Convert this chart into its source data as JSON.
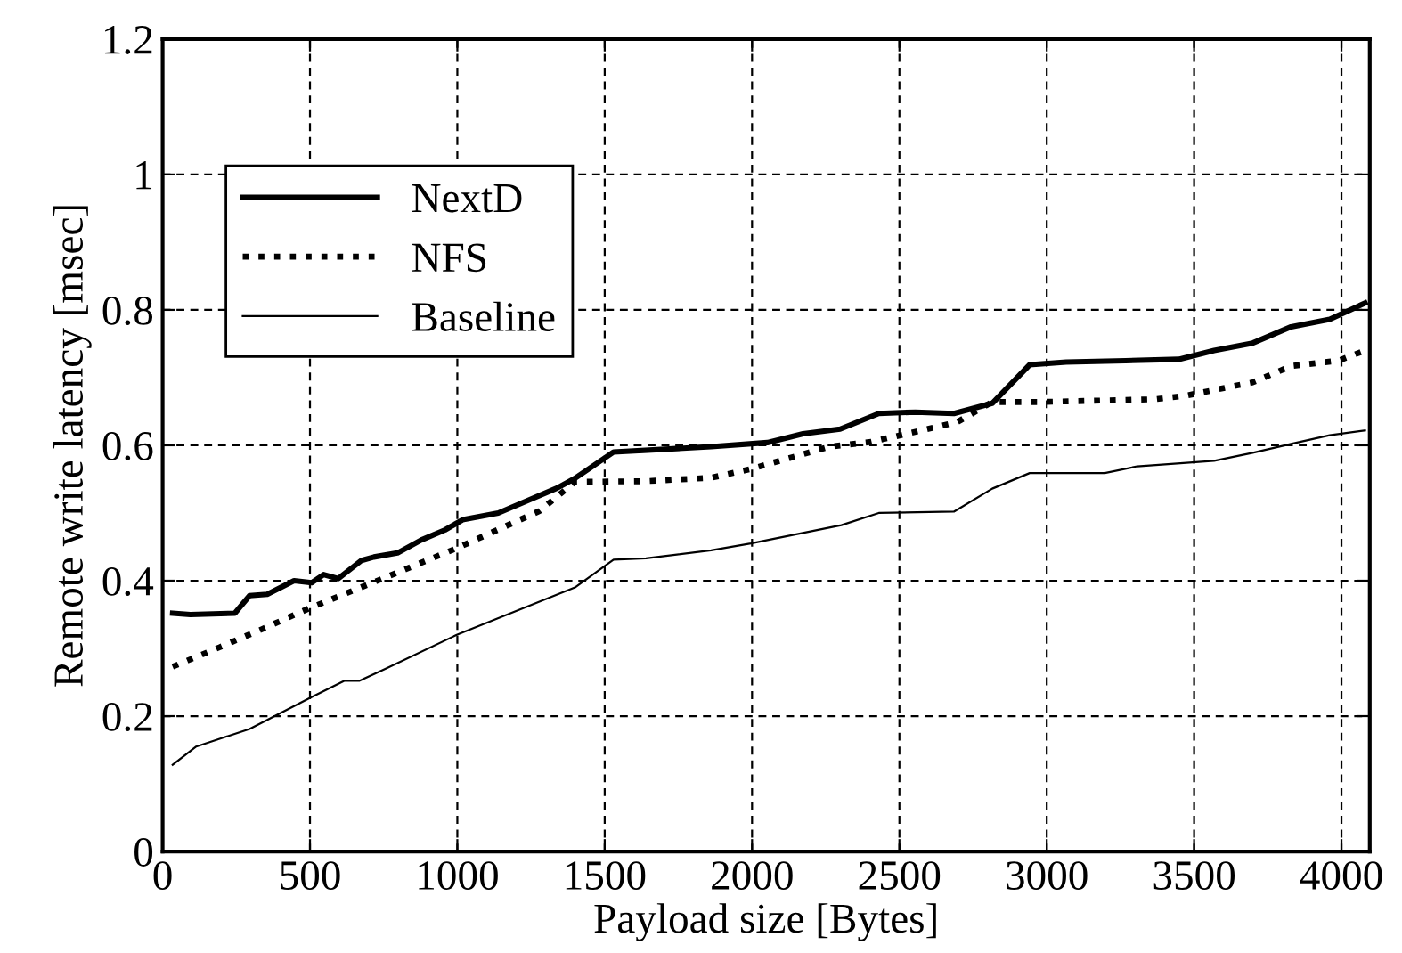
{
  "chart_data": {
    "type": "line",
    "xlabel": "Payload size [Bytes]",
    "ylabel": "Remote write latency [msec]",
    "xlim": [
      0,
      4096
    ],
    "ylim": [
      0,
      1.2
    ],
    "xticks": [
      0,
      500,
      1000,
      1500,
      2000,
      2500,
      3000,
      3500,
      4000
    ],
    "yticks": [
      0,
      0.2,
      0.4,
      0.6,
      0.8,
      1,
      1.2
    ],
    "grid": true,
    "legend": "top left",
    "marker": "none",
    "series": [
      {
        "name": "NextD",
        "color": "#000000",
        "line_style": "solid",
        "x": [
          34,
          94,
          245,
          295,
          355,
          446,
          506,
          546,
          596,
          675,
          717,
          797,
          877,
          958,
          1018,
          1139,
          1339,
          1398,
          1530,
          1861,
          2052,
          2173,
          2299,
          2430,
          2554,
          2685,
          2815,
          2942,
          3066,
          3267,
          3448,
          3568,
          3699,
          3829,
          3960,
          4080
        ],
        "values": [
          0.352,
          0.35,
          0.352,
          0.378,
          0.38,
          0.4,
          0.397,
          0.409,
          0.403,
          0.43,
          0.435,
          0.441,
          0.46,
          0.475,
          0.49,
          0.5,
          0.537,
          0.551,
          0.59,
          0.598,
          0.604,
          0.617,
          0.624,
          0.647,
          0.649,
          0.647,
          0.662,
          0.719,
          0.723,
          0.725,
          0.727,
          0.74,
          0.751,
          0.775,
          0.786,
          0.81
        ]
      },
      {
        "name": "NFS",
        "color": "#000000",
        "line_style": "dotted",
        "x": [
          34,
          195,
          335,
          496,
          757,
          998,
          1279,
          1399,
          1640,
          1861,
          1996,
          2263,
          2404,
          2695,
          2815,
          2986,
          3367,
          3468,
          3699,
          3829,
          3990,
          4080
        ],
        "values": [
          0.273,
          0.302,
          0.328,
          0.359,
          0.405,
          0.448,
          0.503,
          0.546,
          0.547,
          0.552,
          0.565,
          0.598,
          0.605,
          0.634,
          0.664,
          0.664,
          0.668,
          0.673,
          0.693,
          0.717,
          0.725,
          0.74
        ]
      },
      {
        "name": "Baseline",
        "color": "#000000",
        "line_style": "solid",
        "x": [
          34,
          114,
          295,
          496,
          616,
          667,
          757,
          998,
          1399,
          1530,
          1640,
          1861,
          1996,
          2303,
          2430,
          2685,
          2815,
          2942,
          3197,
          3307,
          3568,
          3699,
          3829,
          3960,
          4080
        ],
        "values": [
          0.128,
          0.155,
          0.181,
          0.226,
          0.252,
          0.252,
          0.27,
          0.32,
          0.39,
          0.431,
          0.433,
          0.445,
          0.455,
          0.482,
          0.5,
          0.502,
          0.536,
          0.559,
          0.559,
          0.569,
          0.577,
          0.589,
          0.602,
          0.615,
          0.622
        ]
      }
    ]
  }
}
